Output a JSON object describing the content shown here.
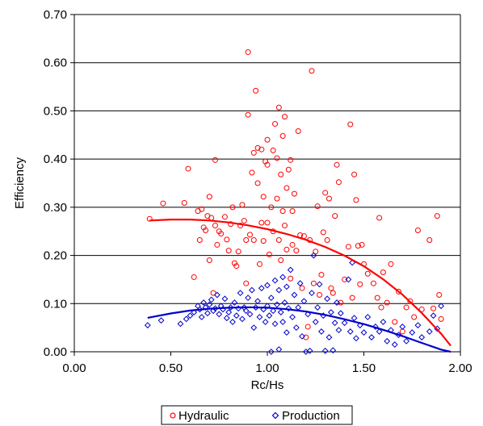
{
  "chart_data": {
    "type": "scatter",
    "title": "",
    "xlabel": "Rc/Hs",
    "ylabel": "Efficiency",
    "xlim": [
      0,
      2
    ],
    "ylim": [
      0,
      0.7
    ],
    "x_ticks": [
      "0.00",
      "0.50",
      "1.00",
      "1.50",
      "2.00"
    ],
    "y_ticks": [
      "0.00",
      "0.10",
      "0.20",
      "0.30",
      "0.40",
      "0.50",
      "0.60",
      "0.70"
    ],
    "grid": "horizontal",
    "legend_position": "bottom",
    "colors": {
      "hydraulic": "#ff0000",
      "production": "#0000cc"
    },
    "series": [
      {
        "name": "Hydraulic",
        "marker": "circle",
        "color": "#ff0000",
        "points": [
          [
            0.39,
            0.276
          ],
          [
            0.46,
            0.308
          ],
          [
            0.57,
            0.309
          ],
          [
            0.59,
            0.38
          ],
          [
            0.62,
            0.155
          ],
          [
            0.64,
            0.292
          ],
          [
            0.65,
            0.232
          ],
          [
            0.66,
            0.296
          ],
          [
            0.67,
            0.258
          ],
          [
            0.68,
            0.252
          ],
          [
            0.69,
            0.282
          ],
          [
            0.7,
            0.322
          ],
          [
            0.7,
            0.19
          ],
          [
            0.71,
            0.278
          ],
          [
            0.72,
            0.122
          ],
          [
            0.73,
            0.398
          ],
          [
            0.73,
            0.262
          ],
          [
            0.74,
            0.222
          ],
          [
            0.75,
            0.25
          ],
          [
            0.76,
            0.245
          ],
          [
            0.78,
            0.28
          ],
          [
            0.79,
            0.233
          ],
          [
            0.8,
            0.21
          ],
          [
            0.81,
            0.265
          ],
          [
            0.82,
            0.3
          ],
          [
            0.83,
            0.184
          ],
          [
            0.84,
            0.178
          ],
          [
            0.85,
            0.208
          ],
          [
            0.86,
            0.262
          ],
          [
            0.87,
            0.305
          ],
          [
            0.88,
            0.272
          ],
          [
            0.89,
            0.232
          ],
          [
            0.89,
            0.142
          ],
          [
            0.9,
            0.492
          ],
          [
            0.9,
            0.622
          ],
          [
            0.91,
            0.243
          ],
          [
            0.92,
            0.372
          ],
          [
            0.93,
            0.232
          ],
          [
            0.93,
            0.413
          ],
          [
            0.94,
            0.542
          ],
          [
            0.95,
            0.423
          ],
          [
            0.95,
            0.35
          ],
          [
            0.96,
            0.182
          ],
          [
            0.97,
            0.268
          ],
          [
            0.97,
            0.42
          ],
          [
            0.98,
            0.322
          ],
          [
            0.98,
            0.23
          ],
          [
            0.99,
            0.395
          ],
          [
            1.0,
            0.44
          ],
          [
            1.0,
            0.388
          ],
          [
            1.0,
            0.268
          ],
          [
            1.01,
            0.202
          ],
          [
            1.02,
            0.3
          ],
          [
            1.03,
            0.418
          ],
          [
            1.03,
            0.25
          ],
          [
            1.04,
            0.473
          ],
          [
            1.05,
            0.402
          ],
          [
            1.05,
            0.318
          ],
          [
            1.06,
            0.507
          ],
          [
            1.06,
            0.232
          ],
          [
            1.07,
            0.368
          ],
          [
            1.07,
            0.19
          ],
          [
            1.08,
            0.448
          ],
          [
            1.08,
            0.292
          ],
          [
            1.09,
            0.488
          ],
          [
            1.09,
            0.262
          ],
          [
            1.1,
            0.34
          ],
          [
            1.1,
            0.212
          ],
          [
            1.11,
            0.378
          ],
          [
            1.12,
            0.398
          ],
          [
            1.12,
            0.152
          ],
          [
            1.13,
            0.292
          ],
          [
            1.13,
            0.222
          ],
          [
            1.14,
            0.328
          ],
          [
            1.15,
            0.21
          ],
          [
            1.16,
            0.458
          ],
          [
            1.17,
            0.242
          ],
          [
            1.18,
            0.132
          ],
          [
            1.19,
            0.24
          ],
          [
            1.2,
            0.03
          ],
          [
            1.21,
            0.052
          ],
          [
            1.22,
            0.232
          ],
          [
            1.23,
            0.583
          ],
          [
            1.24,
            0.142
          ],
          [
            1.25,
            0.208
          ],
          [
            1.26,
            0.302
          ],
          [
            1.27,
            0.118
          ],
          [
            1.28,
            0.16
          ],
          [
            1.29,
            0.248
          ],
          [
            1.3,
            0.33
          ],
          [
            1.31,
            0.232
          ],
          [
            1.32,
            0.318
          ],
          [
            1.33,
            0.132
          ],
          [
            1.34,
            0.122
          ],
          [
            1.35,
            0.282
          ],
          [
            1.36,
            0.388
          ],
          [
            1.37,
            0.352
          ],
          [
            1.38,
            0.102
          ],
          [
            1.4,
            0.15
          ],
          [
            1.42,
            0.218
          ],
          [
            1.43,
            0.472
          ],
          [
            1.44,
            0.112
          ],
          [
            1.45,
            0.368
          ],
          [
            1.46,
            0.315
          ],
          [
            1.47,
            0.22
          ],
          [
            1.48,
            0.14
          ],
          [
            1.49,
            0.222
          ],
          [
            1.5,
            0.182
          ],
          [
            1.52,
            0.162
          ],
          [
            1.55,
            0.142
          ],
          [
            1.57,
            0.112
          ],
          [
            1.58,
            0.278
          ],
          [
            1.59,
            0.092
          ],
          [
            1.6,
            0.165
          ],
          [
            1.62,
            0.102
          ],
          [
            1.64,
            0.182
          ],
          [
            1.66,
            0.062
          ],
          [
            1.68,
            0.125
          ],
          [
            1.7,
            0.042
          ],
          [
            1.72,
            0.092
          ],
          [
            1.74,
            0.105
          ],
          [
            1.76,
            0.072
          ],
          [
            1.78,
            0.252
          ],
          [
            1.8,
            0.088
          ],
          [
            1.84,
            0.232
          ],
          [
            1.86,
            0.09
          ],
          [
            1.88,
            0.282
          ],
          [
            1.89,
            0.118
          ],
          [
            1.9,
            0.068
          ]
        ],
        "trend_points": [
          [
            0.39,
            0.2725
          ],
          [
            0.5,
            0.2745
          ],
          [
            0.6,
            0.2745
          ],
          [
            0.7,
            0.2725
          ],
          [
            0.8,
            0.2685
          ],
          [
            0.9,
            0.2625
          ],
          [
            1.0,
            0.2545
          ],
          [
            1.1,
            0.2445
          ],
          [
            1.2,
            0.2325
          ],
          [
            1.3,
            0.2175
          ],
          [
            1.4,
            0.1995
          ],
          [
            1.5,
            0.1775
          ],
          [
            1.6,
            0.1505
          ],
          [
            1.7,
            0.1185
          ],
          [
            1.8,
            0.0805
          ],
          [
            1.9,
            0.0375
          ],
          [
            1.95,
            0.0125
          ]
        ]
      },
      {
        "name": "Production",
        "marker": "diamond",
        "color": "#0000cc",
        "points": [
          [
            0.38,
            0.055
          ],
          [
            0.45,
            0.065
          ],
          [
            0.55,
            0.058
          ],
          [
            0.58,
            0.068
          ],
          [
            0.6,
            0.075
          ],
          [
            0.62,
            0.082
          ],
          [
            0.64,
            0.095
          ],
          [
            0.65,
            0.088
          ],
          [
            0.66,
            0.072
          ],
          [
            0.67,
            0.102
          ],
          [
            0.68,
            0.092
          ],
          [
            0.69,
            0.08
          ],
          [
            0.7,
            0.098
          ],
          [
            0.71,
            0.108
          ],
          [
            0.72,
            0.085
          ],
          [
            0.73,
            0.09
          ],
          [
            0.74,
            0.118
          ],
          [
            0.75,
            0.078
          ],
          [
            0.76,
            0.095
          ],
          [
            0.77,
            0.088
          ],
          [
            0.78,
            0.11
          ],
          [
            0.79,
            0.07
          ],
          [
            0.8,
            0.082
          ],
          [
            0.81,
            0.092
          ],
          [
            0.82,
            0.062
          ],
          [
            0.83,
            0.102
          ],
          [
            0.84,
            0.075
          ],
          [
            0.85,
            0.09
          ],
          [
            0.86,
            0.122
          ],
          [
            0.87,
            0.068
          ],
          [
            0.88,
            0.092
          ],
          [
            0.89,
            0.085
          ],
          [
            0.9,
            0.112
          ],
          [
            0.91,
            0.078
          ],
          [
            0.92,
            0.128
          ],
          [
            0.93,
            0.05
          ],
          [
            0.94,
            0.092
          ],
          [
            0.95,
            0.105
          ],
          [
            0.96,
            0.072
          ],
          [
            0.97,
            0.132
          ],
          [
            0.98,
            0.088
          ],
          [
            0.99,
            0.062
          ],
          [
            1.0,
            0.095
          ],
          [
            1.0,
            0.138
          ],
          [
            1.01,
            0.075
          ],
          [
            1.02,
            0.112
          ],
          [
            1.02,
            0.0
          ],
          [
            1.03,
            0.085
          ],
          [
            1.04,
            0.148
          ],
          [
            1.04,
            0.058
          ],
          [
            1.05,
            0.098
          ],
          [
            1.06,
            0.128
          ],
          [
            1.06,
            0.005
          ],
          [
            1.07,
            0.082
          ],
          [
            1.08,
            0.155
          ],
          [
            1.08,
            0.062
          ],
          [
            1.09,
            0.102
          ],
          [
            1.1,
            0.135
          ],
          [
            1.1,
            0.04
          ],
          [
            1.11,
            0.09
          ],
          [
            1.12,
            0.17
          ],
          [
            1.13,
            0.072
          ],
          [
            1.14,
            0.118
          ],
          [
            1.15,
            0.05
          ],
          [
            1.16,
            0.092
          ],
          [
            1.17,
            0.142
          ],
          [
            1.18,
            0.032
          ],
          [
            1.19,
            0.105
          ],
          [
            1.2,
            0.0
          ],
          [
            1.21,
            0.078
          ],
          [
            1.22,
            0.002
          ],
          [
            1.23,
            0.122
          ],
          [
            1.24,
            0.2
          ],
          [
            1.25,
            0.062
          ],
          [
            1.26,
            0.092
          ],
          [
            1.27,
            0.14
          ],
          [
            1.28,
            0.042
          ],
          [
            1.29,
            0.075
          ],
          [
            1.3,
            0.002
          ],
          [
            1.31,
            0.11
          ],
          [
            1.32,
            0.03
          ],
          [
            1.33,
            0.082
          ],
          [
            1.34,
            0.003
          ],
          [
            1.35,
            0.06
          ],
          [
            1.36,
            0.102
          ],
          [
            1.37,
            0.045
          ],
          [
            1.38,
            0.08
          ],
          [
            1.4,
            0.06
          ],
          [
            1.42,
            0.15
          ],
          [
            1.43,
            0.042
          ],
          [
            1.44,
            0.185
          ],
          [
            1.45,
            0.07
          ],
          [
            1.46,
            0.028
          ],
          [
            1.48,
            0.055
          ],
          [
            1.5,
            0.04
          ],
          [
            1.52,
            0.072
          ],
          [
            1.54,
            0.03
          ],
          [
            1.56,
            0.052
          ],
          [
            1.58,
            0.042
          ],
          [
            1.6,
            0.062
          ],
          [
            1.62,
            0.022
          ],
          [
            1.64,
            0.045
          ],
          [
            1.66,
            0.015
          ],
          [
            1.68,
            0.035
          ],
          [
            1.7,
            0.052
          ],
          [
            1.72,
            0.022
          ],
          [
            1.75,
            0.04
          ],
          [
            1.78,
            0.055
          ],
          [
            1.8,
            0.03
          ],
          [
            1.84,
            0.042
          ],
          [
            1.86,
            0.075
          ],
          [
            1.88,
            0.048
          ],
          [
            1.9,
            0.095
          ]
        ],
        "trend_points": [
          [
            0.38,
            0.0705
          ],
          [
            0.5,
            0.0795
          ],
          [
            0.6,
            0.0855
          ],
          [
            0.7,
            0.0895
          ],
          [
            0.8,
            0.0915
          ],
          [
            0.9,
            0.0925
          ],
          [
            1.0,
            0.0915
          ],
          [
            1.1,
            0.0885
          ],
          [
            1.2,
            0.0835
          ],
          [
            1.3,
            0.0765
          ],
          [
            1.4,
            0.0675
          ],
          [
            1.5,
            0.0575
          ],
          [
            1.6,
            0.0455
          ],
          [
            1.7,
            0.0325
          ],
          [
            1.8,
            0.0185
          ],
          [
            1.9,
            0.0045
          ],
          [
            1.95,
            -0.0035
          ]
        ]
      }
    ]
  }
}
